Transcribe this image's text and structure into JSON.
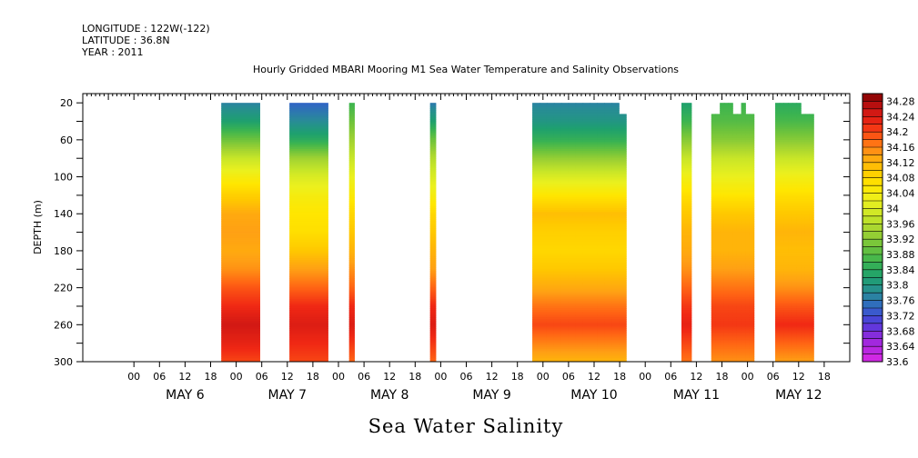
{
  "header": {
    "longitude": "LONGITUDE : 122W(-122)",
    "latitude": "LATITUDE : 36.8N",
    "year": "YEAR : 2011"
  },
  "chart_data": {
    "type": "heatmap",
    "title": "Hourly Gridded MBARI Mooring M1 Sea Water Temperature and Salinity Observations",
    "xlabel": "Sea Water Salinity",
    "ylabel": "DEPTH (m)",
    "ylim": [
      300,
      10
    ],
    "y_reversed": true,
    "y_ticks": [
      20,
      60,
      100,
      140,
      180,
      220,
      260,
      300
    ],
    "x_unit": "hours since 2011-05-06 00:00",
    "xlim": [
      -12,
      168
    ],
    "x_ticks": [
      {
        "hour": 0,
        "label": "00"
      },
      {
        "hour": 6,
        "label": "06"
      },
      {
        "hour": 12,
        "label": "12"
      },
      {
        "hour": 18,
        "label": "18"
      },
      {
        "hour": 24,
        "label": "00"
      },
      {
        "hour": 30,
        "label": "06"
      },
      {
        "hour": 36,
        "label": "12"
      },
      {
        "hour": 42,
        "label": "18"
      },
      {
        "hour": 48,
        "label": "00"
      },
      {
        "hour": 54,
        "label": "06"
      },
      {
        "hour": 60,
        "label": "12"
      },
      {
        "hour": 66,
        "label": "18"
      },
      {
        "hour": 72,
        "label": "00"
      },
      {
        "hour": 78,
        "label": "06"
      },
      {
        "hour": 84,
        "label": "12"
      },
      {
        "hour": 90,
        "label": "18"
      },
      {
        "hour": 96,
        "label": "00"
      },
      {
        "hour": 102,
        "label": "06"
      },
      {
        "hour": 108,
        "label": "12"
      },
      {
        "hour": 114,
        "label": "18"
      },
      {
        "hour": 120,
        "label": "00"
      },
      {
        "hour": 126,
        "label": "06"
      },
      {
        "hour": 132,
        "label": "12"
      },
      {
        "hour": 138,
        "label": "18"
      },
      {
        "hour": 144,
        "label": "00"
      },
      {
        "hour": 150,
        "label": "06"
      },
      {
        "hour": 156,
        "label": "12"
      },
      {
        "hour": 162,
        "label": "18"
      }
    ],
    "day_labels": [
      {
        "hour": 12,
        "label": "MAY  6"
      },
      {
        "hour": 36,
        "label": "MAY  7"
      },
      {
        "hour": 60,
        "label": "MAY  8"
      },
      {
        "hour": 84,
        "label": "MAY  9"
      },
      {
        "hour": 108,
        "label": "MAY 10"
      },
      {
        "hour": 132,
        "label": "MAY 11"
      },
      {
        "hour": 156,
        "label": "MAY 12"
      }
    ],
    "colorbar": {
      "min": 33.6,
      "max": 34.3,
      "step": 0.02,
      "labels": [
        "34.28",
        "34.24",
        "34.2",
        "34.16",
        "34.12",
        "34.08",
        "34.04",
        "34",
        "33.96",
        "33.92",
        "33.88",
        "33.84",
        "33.8",
        "33.76",
        "33.72",
        "33.68",
        "33.64",
        "33.6"
      ]
    },
    "depths": [
      20,
      40,
      60,
      80,
      100,
      120,
      140,
      160,
      180,
      200,
      220,
      240,
      260,
      280,
      300
    ],
    "segments": [
      {
        "x0": 20.5,
        "x1": 29.5,
        "tops": [
          20
        ],
        "values": [
          33.77,
          33.82,
          33.9,
          33.98,
          34.04,
          34.09,
          34.13,
          34.14,
          34.13,
          34.15,
          34.19,
          34.22,
          34.25,
          34.23,
          34.2
        ]
      },
      {
        "x0": 36.5,
        "x1": 45.5,
        "tops": [
          20
        ],
        "values": [
          33.74,
          33.78,
          33.84,
          33.94,
          34.0,
          34.04,
          34.06,
          34.07,
          34.1,
          34.14,
          34.18,
          34.22,
          34.24,
          34.22,
          34.2
        ]
      },
      {
        "x0": 50.5,
        "x1": 51.7,
        "tops": [
          20
        ],
        "values": [
          33.86,
          33.9,
          33.94,
          33.98,
          34.02,
          34.05,
          34.08,
          34.1,
          34.12,
          34.15,
          34.18,
          34.22,
          34.24,
          34.21,
          34.18
        ]
      },
      {
        "x0": 69.5,
        "x1": 70.8,
        "tops": [
          20
        ],
        "values": [
          33.76,
          33.82,
          33.9,
          33.96,
          34.0,
          34.04,
          34.08,
          34.1,
          34.12,
          34.14,
          34.18,
          34.22,
          34.24,
          34.21,
          34.18
        ]
      },
      {
        "x0": 93.5,
        "x1": 115.5,
        "tops": [
          20,
          20,
          20,
          20,
          20,
          20,
          20,
          20,
          20,
          20,
          20,
          20,
          32
        ],
        "values": [
          33.77,
          33.8,
          33.85,
          33.93,
          34.0,
          34.06,
          34.11,
          34.09,
          34.08,
          34.1,
          34.13,
          34.17,
          34.2,
          34.16,
          34.12
        ]
      },
      {
        "x0": 128.5,
        "x1": 130.8,
        "tops": [
          20
        ],
        "values": [
          33.82,
          33.86,
          33.92,
          33.98,
          34.03,
          34.07,
          34.1,
          34.12,
          34.13,
          34.15,
          34.18,
          34.21,
          34.23,
          34.2,
          34.17
        ]
      },
      {
        "x0": 135.5,
        "x1": 145.5,
        "tops": [
          32,
          32,
          20,
          20,
          20,
          32,
          32,
          20,
          32,
          32
        ],
        "values": [
          33.86,
          33.88,
          33.92,
          33.98,
          34.02,
          34.06,
          34.1,
          34.12,
          34.12,
          34.14,
          34.17,
          34.2,
          34.21,
          34.18,
          34.15
        ]
      },
      {
        "x0": 150.5,
        "x1": 159.5,
        "tops": [
          20,
          20,
          20,
          20,
          20,
          20,
          32,
          32,
          32
        ],
        "values": [
          33.84,
          33.87,
          33.92,
          33.98,
          34.03,
          34.07,
          34.1,
          34.12,
          34.11,
          34.12,
          34.15,
          34.19,
          34.22,
          34.18,
          34.14
        ]
      }
    ]
  }
}
